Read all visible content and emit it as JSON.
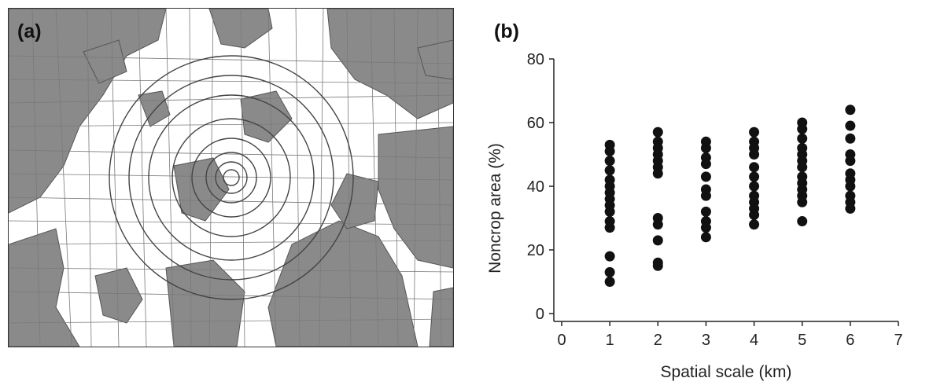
{
  "panels": {
    "a_label": "(a)",
    "b_label": "(b)"
  },
  "chart_data": {
    "type": "scatter",
    "title": "",
    "xlabel": "Spatial scale (km)",
    "ylabel": "Noncrop area (%)",
    "xlim": [
      0,
      7
    ],
    "ylim": [
      0,
      80
    ],
    "xticks": [
      0,
      1,
      2,
      3,
      4,
      5,
      6,
      7
    ],
    "yticks": [
      0,
      20,
      40,
      60,
      80
    ],
    "grid": false,
    "marker_color": "#111111",
    "series": [
      {
        "points": [
          [
            1,
            53
          ],
          [
            1,
            51
          ],
          [
            1,
            48
          ],
          [
            1,
            45
          ],
          [
            1,
            42
          ],
          [
            1,
            40
          ],
          [
            1,
            38
          ],
          [
            1,
            36
          ],
          [
            1,
            34
          ],
          [
            1,
            32
          ],
          [
            1,
            29
          ],
          [
            1,
            27
          ],
          [
            1,
            18
          ],
          [
            1,
            13
          ],
          [
            1,
            10
          ],
          [
            2,
            57
          ],
          [
            2,
            54
          ],
          [
            2,
            52
          ],
          [
            2,
            50
          ],
          [
            2,
            48
          ],
          [
            2,
            46
          ],
          [
            2,
            44
          ],
          [
            2,
            30
          ],
          [
            2,
            28
          ],
          [
            2,
            23
          ],
          [
            2,
            16
          ],
          [
            2,
            15
          ],
          [
            3,
            54
          ],
          [
            3,
            52
          ],
          [
            3,
            49
          ],
          [
            3,
            47
          ],
          [
            3,
            43
          ],
          [
            3,
            39
          ],
          [
            3,
            37
          ],
          [
            3,
            32
          ],
          [
            3,
            29
          ],
          [
            3,
            27
          ],
          [
            3,
            24
          ],
          [
            4,
            57
          ],
          [
            4,
            54
          ],
          [
            4,
            52
          ],
          [
            4,
            50
          ],
          [
            4,
            46
          ],
          [
            4,
            43
          ],
          [
            4,
            40
          ],
          [
            4,
            37
          ],
          [
            4,
            35
          ],
          [
            4,
            33
          ],
          [
            4,
            31
          ],
          [
            4,
            28
          ],
          [
            5,
            60
          ],
          [
            5,
            58
          ],
          [
            5,
            55
          ],
          [
            5,
            52
          ],
          [
            5,
            50
          ],
          [
            5,
            48
          ],
          [
            5,
            46
          ],
          [
            5,
            43
          ],
          [
            5,
            41
          ],
          [
            5,
            39
          ],
          [
            5,
            37
          ],
          [
            5,
            35
          ],
          [
            5,
            29
          ],
          [
            6,
            64
          ],
          [
            6,
            59
          ],
          [
            6,
            55
          ],
          [
            6,
            50
          ],
          [
            6,
            48
          ],
          [
            6,
            44
          ],
          [
            6,
            42
          ],
          [
            6,
            40
          ],
          [
            6,
            37
          ],
          [
            6,
            35
          ],
          [
            6,
            33
          ]
        ]
      }
    ]
  }
}
